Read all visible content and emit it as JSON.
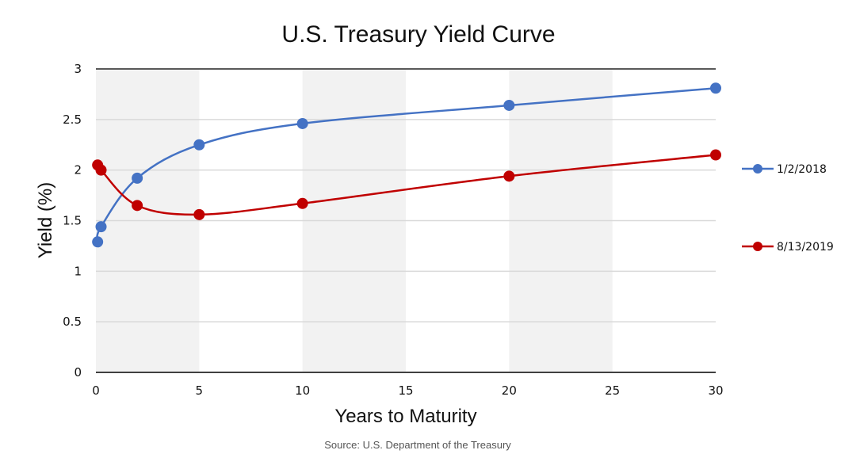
{
  "chart_data": {
    "type": "line",
    "title": "U.S. Treasury Yield Curve",
    "xlabel": "Years to Maturity",
    "ylabel": "Yield (%)",
    "source": "Source: U.S. Department of the Treasury",
    "xlim": [
      0,
      30
    ],
    "ylim": [
      0,
      3
    ],
    "x_ticks": [
      0,
      5,
      10,
      15,
      20,
      25,
      30
    ],
    "y_ticks": [
      0,
      0.5,
      1,
      1.5,
      2,
      2.5,
      3
    ],
    "grid": true,
    "alternating_bands": true,
    "band_color": "#f2f2f2",
    "grid_color": "#d9d9d9",
    "legend_position": "right",
    "series": [
      {
        "name": "1/2/2018",
        "color": "#4472c4",
        "points": [
          {
            "x": 0.083,
            "y": 1.29
          },
          {
            "x": 0.25,
            "y": 1.44
          },
          {
            "x": 2,
            "y": 1.92
          },
          {
            "x": 5,
            "y": 2.25
          },
          {
            "x": 10,
            "y": 2.46
          },
          {
            "x": 20,
            "y": 2.64
          },
          {
            "x": 30,
            "y": 2.81
          }
        ]
      },
      {
        "name": "8/13/2019",
        "color": "#c00000",
        "points": [
          {
            "x": 0.083,
            "y": 2.05
          },
          {
            "x": 0.25,
            "y": 2.0
          },
          {
            "x": 2,
            "y": 1.65
          },
          {
            "x": 5,
            "y": 1.56
          },
          {
            "x": 10,
            "y": 1.67
          },
          {
            "x": 20,
            "y": 1.94
          },
          {
            "x": 30,
            "y": 2.15
          }
        ]
      }
    ]
  }
}
